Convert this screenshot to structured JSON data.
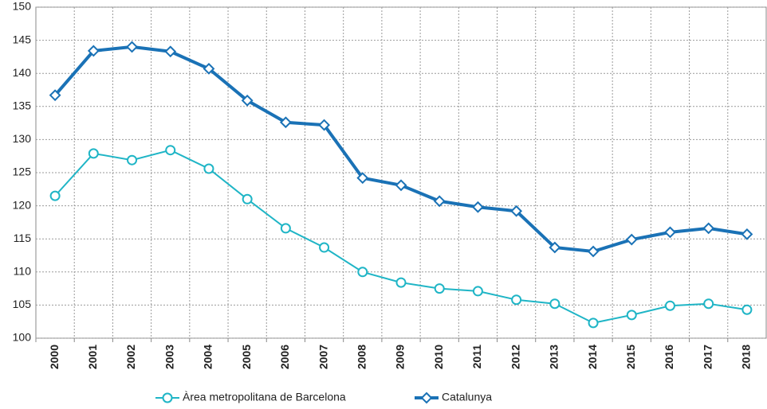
{
  "chart_data": {
    "type": "line",
    "categories": [
      "2000",
      "2001",
      "2002",
      "2003",
      "2004",
      "2005",
      "2006",
      "2007",
      "2008",
      "2009",
      "2010",
      "2011",
      "2012",
      "2013",
      "2014",
      "2015",
      "2016",
      "2017",
      "2018"
    ],
    "series": [
      {
        "name": "Àrea metropolitana de Barcelona",
        "color": "#1fb5c6",
        "marker": "circle",
        "values": [
          121.5,
          127.9,
          126.9,
          128.4,
          125.6,
          121.0,
          116.6,
          113.7,
          110.0,
          108.4,
          107.5,
          107.1,
          105.8,
          105.2,
          102.3,
          103.5,
          104.9,
          105.2,
          104.3
        ]
      },
      {
        "name": "Catalunya",
        "color": "#1a72b6",
        "marker": "diamond",
        "values": [
          136.7,
          143.4,
          144.0,
          143.3,
          140.7,
          135.9,
          132.6,
          132.2,
          124.2,
          123.1,
          120.7,
          119.8,
          119.2,
          113.7,
          113.1,
          114.9,
          116.0,
          116.6,
          115.7
        ]
      }
    ],
    "ylim": [
      100,
      150
    ],
    "yticks": [
      100,
      105,
      110,
      115,
      120,
      125,
      130,
      135,
      140,
      145,
      150
    ],
    "grid": true,
    "legend": "bottom"
  }
}
